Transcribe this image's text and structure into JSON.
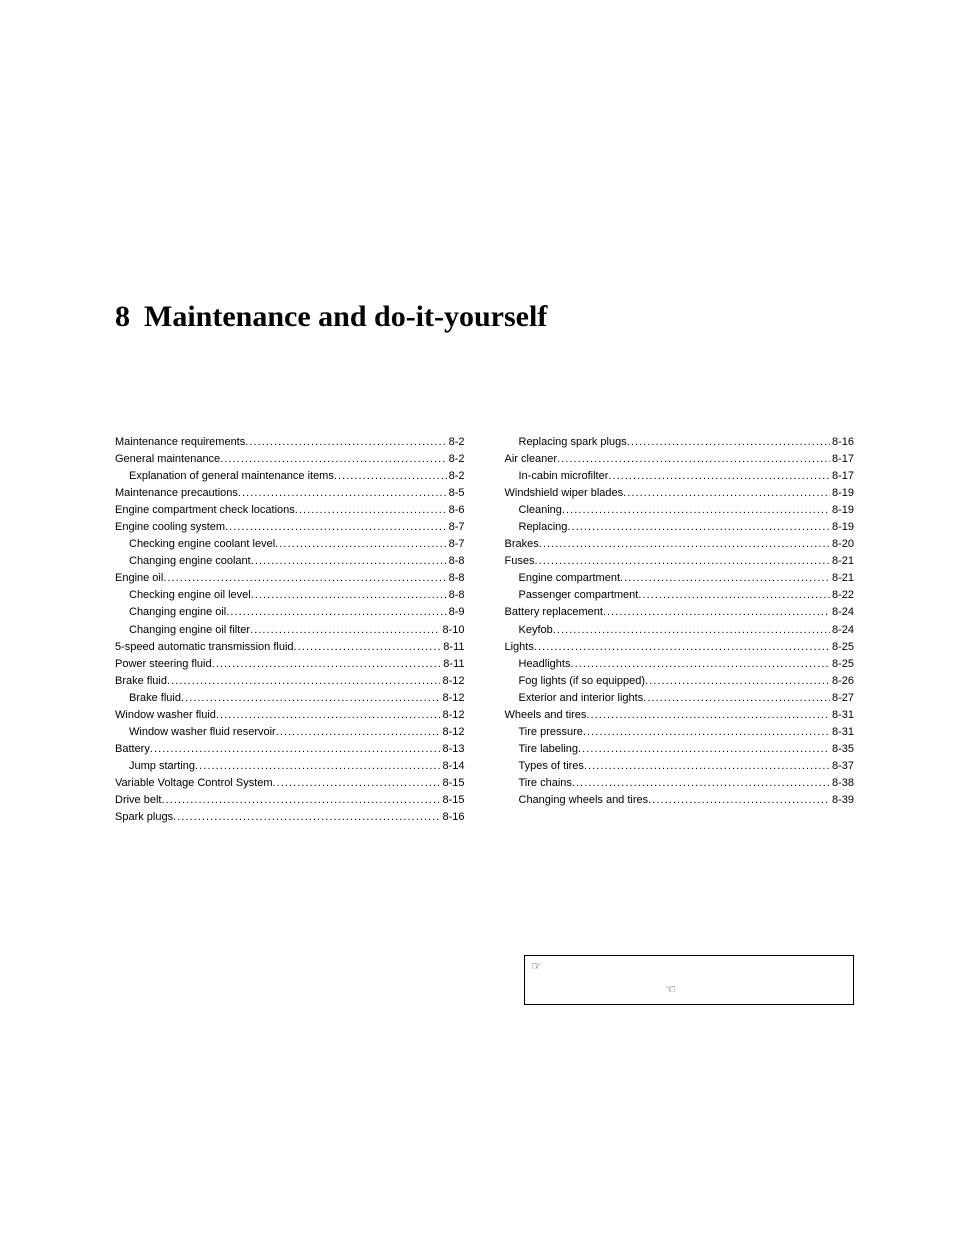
{
  "chapter_number": "8",
  "chapter_title": "Maintenance and do-it-yourself",
  "title_fontsize": 30,
  "body_fontsize": 11,
  "colors": {
    "text": "#000000",
    "background": "#ffffff",
    "border": "#000000"
  },
  "toc_left": [
    {
      "label": "Maintenance requirements",
      "page": "8-2",
      "indent": 0
    },
    {
      "label": "General maintenance",
      "page": "8-2",
      "indent": 0
    },
    {
      "label": "Explanation of general maintenance items",
      "page": "8-2",
      "indent": 1
    },
    {
      "label": "Maintenance precautions",
      "page": "8-5",
      "indent": 0
    },
    {
      "label": "Engine compartment check locations",
      "page": "8-6",
      "indent": 0
    },
    {
      "label": "Engine cooling system",
      "page": "8-7",
      "indent": 0
    },
    {
      "label": "Checking engine coolant level",
      "page": "8-7",
      "indent": 1
    },
    {
      "label": "Changing engine coolant",
      "page": "8-8",
      "indent": 1
    },
    {
      "label": "Engine oil",
      "page": "8-8",
      "indent": 0
    },
    {
      "label": "Checking engine oil level",
      "page": "8-8",
      "indent": 1
    },
    {
      "label": "Changing engine oil",
      "page": "8-9",
      "indent": 1
    },
    {
      "label": "Changing engine oil filter",
      "page": "8-10",
      "indent": 1
    },
    {
      "label": "5-speed automatic transmission fluid",
      "page": "8-11",
      "indent": 0
    },
    {
      "label": "Power steering fluid",
      "page": "8-11",
      "indent": 0
    },
    {
      "label": "Brake fluid",
      "page": "8-12",
      "indent": 0
    },
    {
      "label": "Brake fluid",
      "page": "8-12",
      "indent": 1
    },
    {
      "label": "Window washer fluid",
      "page": "8-12",
      "indent": 0
    },
    {
      "label": "Window washer fluid reservoir",
      "page": "8-12",
      "indent": 1
    },
    {
      "label": "Battery",
      "page": "8-13",
      "indent": 0
    },
    {
      "label": "Jump starting",
      "page": "8-14",
      "indent": 1
    },
    {
      "label": "Variable Voltage Control System",
      "page": "8-15",
      "indent": 0
    },
    {
      "label": "Drive belt",
      "page": "8-15",
      "indent": 0
    },
    {
      "label": "Spark plugs",
      "page": "8-16",
      "indent": 0
    }
  ],
  "toc_right": [
    {
      "label": "Replacing spark plugs",
      "page": "8-16",
      "indent": 1
    },
    {
      "label": "Air cleaner",
      "page": "8-17",
      "indent": 0
    },
    {
      "label": "In-cabin microfilter",
      "page": "8-17",
      "indent": 1
    },
    {
      "label": "Windshield wiper blades",
      "page": "8-19",
      "indent": 0
    },
    {
      "label": "Cleaning",
      "page": "8-19",
      "indent": 1
    },
    {
      "label": "Replacing",
      "page": "8-19",
      "indent": 1
    },
    {
      "label": "Brakes",
      "page": "8-20",
      "indent": 0
    },
    {
      "label": "Fuses",
      "page": "8-21",
      "indent": 0
    },
    {
      "label": "Engine compartment",
      "page": "8-21",
      "indent": 1
    },
    {
      "label": "Passenger compartment",
      "page": "8-22",
      "indent": 1
    },
    {
      "label": "Battery replacement",
      "page": "8-24",
      "indent": 0
    },
    {
      "label": "Keyfob",
      "page": "8-24",
      "indent": 1
    },
    {
      "label": "Lights",
      "page": "8-25",
      "indent": 0
    },
    {
      "label": "Headlights",
      "page": "8-25",
      "indent": 1
    },
    {
      "label": "Fog lights (if so equipped)",
      "page": "8-26",
      "indent": 1
    },
    {
      "label": "Exterior and interior lights",
      "page": "8-27",
      "indent": 1
    },
    {
      "label": "Wheels and tires",
      "page": "8-31",
      "indent": 0
    },
    {
      "label": "Tire pressure",
      "page": "8-31",
      "indent": 1
    },
    {
      "label": "Tire labeling",
      "page": "8-35",
      "indent": 1
    },
    {
      "label": "Types of tires",
      "page": "8-37",
      "indent": 1
    },
    {
      "label": "Tire chains",
      "page": "8-38",
      "indent": 1
    },
    {
      "label": "Changing wheels and tires",
      "page": "8-39",
      "indent": 1
    }
  ],
  "footer_icons": {
    "top_left": "☞",
    "middle": "☜"
  }
}
